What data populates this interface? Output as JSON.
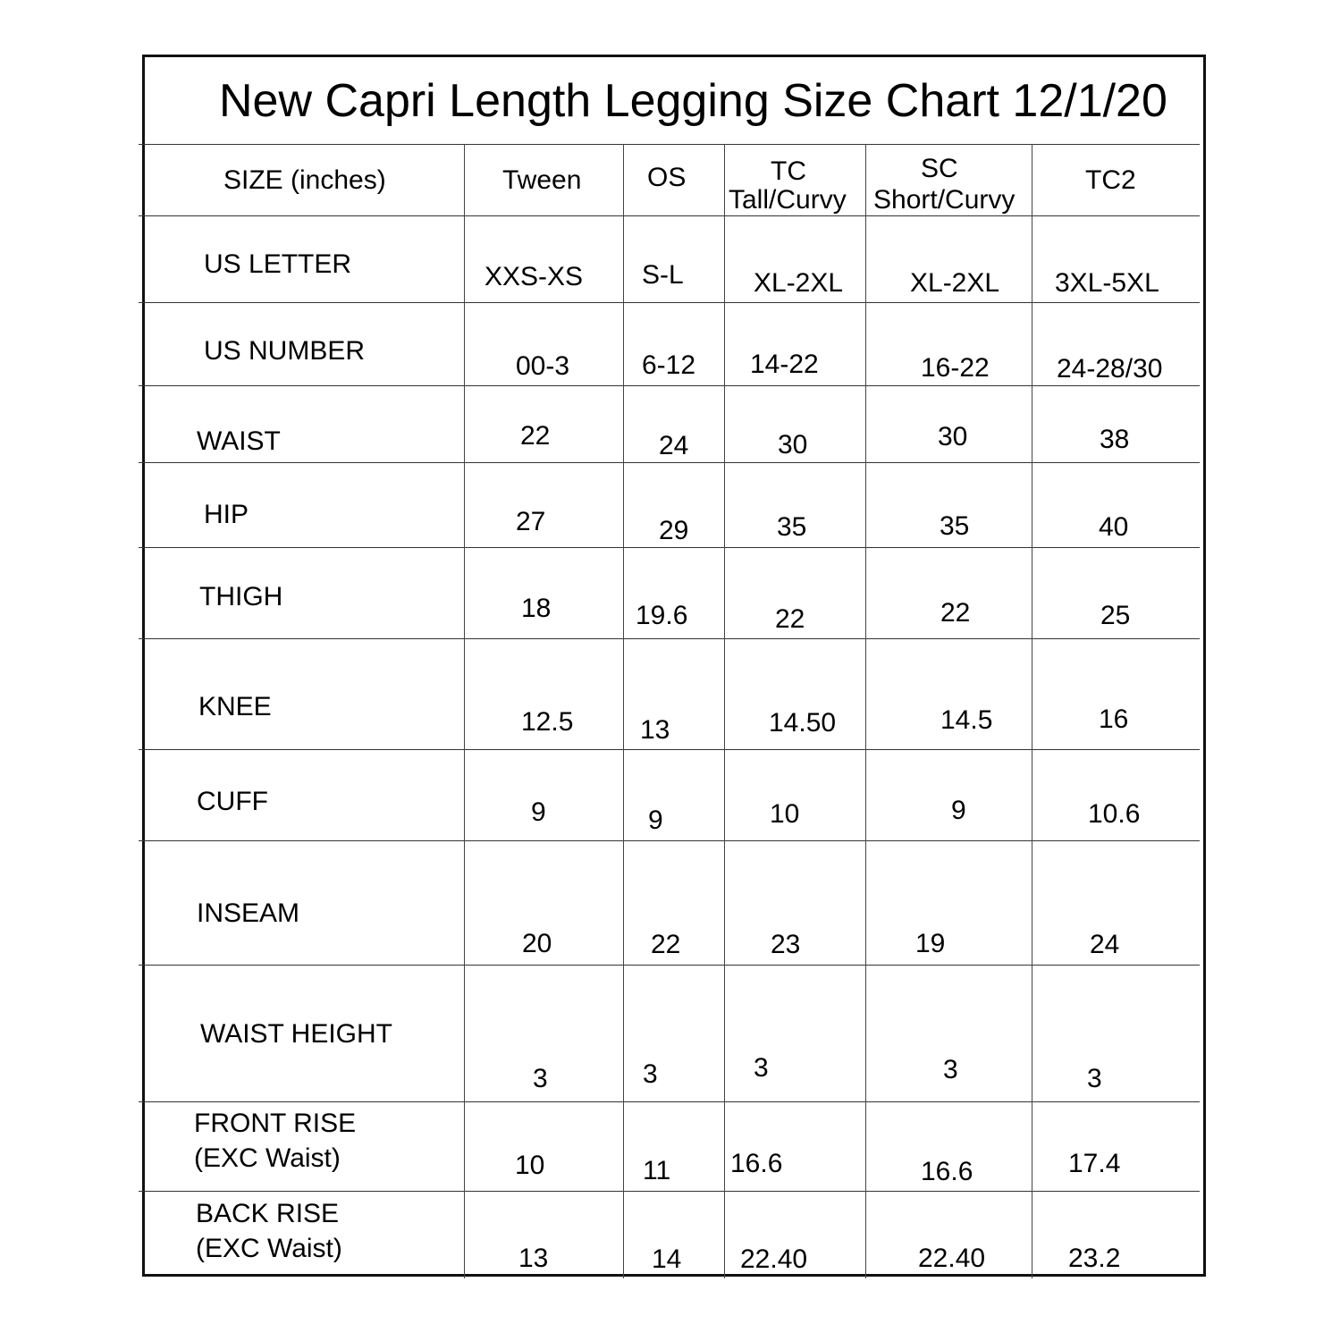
{
  "title": "New Capri Length Legging Size Chart 12/1/20",
  "header": {
    "size_label": "SIZE (inches)",
    "columns": [
      {
        "line1": "Tween"
      },
      {
        "line1": "OS"
      },
      {
        "line1": "TC",
        "line2": "Tall/Curvy"
      },
      {
        "line1": "SC",
        "line2": "Short/Curvy"
      },
      {
        "line1": "TC2"
      }
    ]
  },
  "rows": [
    {
      "label": [
        "US LETTER"
      ],
      "values": [
        "XXS-XS",
        "S-L",
        "XL-2XL",
        "XL-2XL",
        "3XL-5XL"
      ]
    },
    {
      "label": [
        "US NUMBER"
      ],
      "values": [
        "00-3",
        "6-12",
        "14-22",
        "16-22",
        "24-28/30"
      ]
    },
    {
      "label": [
        "WAIST"
      ],
      "values": [
        "22",
        "24",
        "30",
        "30",
        "38"
      ]
    },
    {
      "label": [
        "HIP"
      ],
      "values": [
        "27",
        "29",
        "35",
        "35",
        "40"
      ]
    },
    {
      "label": [
        "THIGH"
      ],
      "values": [
        "18",
        "19.6",
        "22",
        "22",
        "25"
      ]
    },
    {
      "label": [
        "KNEE"
      ],
      "values": [
        "12.5",
        "13",
        "14.50",
        "14.5",
        "16"
      ]
    },
    {
      "label": [
        "CUFF"
      ],
      "values": [
        "9",
        "9",
        "10",
        "9",
        "10.6"
      ]
    },
    {
      "label": [
        "INSEAM"
      ],
      "values": [
        "20",
        "22",
        "23",
        "19",
        "24"
      ]
    },
    {
      "label": [
        "WAIST HEIGHT"
      ],
      "values": [
        "3",
        "3",
        "3",
        "3",
        "3"
      ]
    },
    {
      "label": [
        "FRONT RISE",
        "(EXC Waist)"
      ],
      "values": [
        "10",
        "11",
        "16.6",
        "16.6",
        "17.4"
      ]
    },
    {
      "label": [
        "BACK RISE",
        "(EXC Waist)"
      ],
      "values": [
        "13",
        "14",
        "22.40",
        "22.40",
        "23.2"
      ]
    }
  ]
}
